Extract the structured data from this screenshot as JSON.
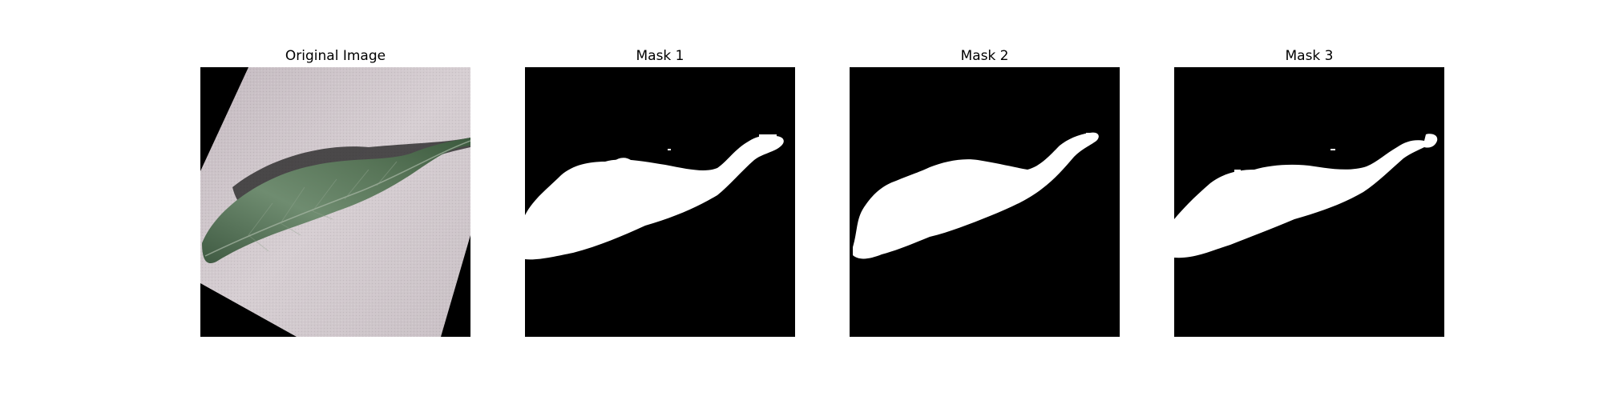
{
  "figure": {
    "panels": [
      {
        "title": "Original Image"
      },
      {
        "title": "Mask 1"
      },
      {
        "title": "Mask 2"
      },
      {
        "title": "Mask 3"
      }
    ],
    "colors": {
      "background": "#ffffff",
      "mask_background": "#000000",
      "mask_foreground": "#ffffff",
      "paper": "#cfc6cb",
      "leaf": "#5b7a5c"
    }
  }
}
